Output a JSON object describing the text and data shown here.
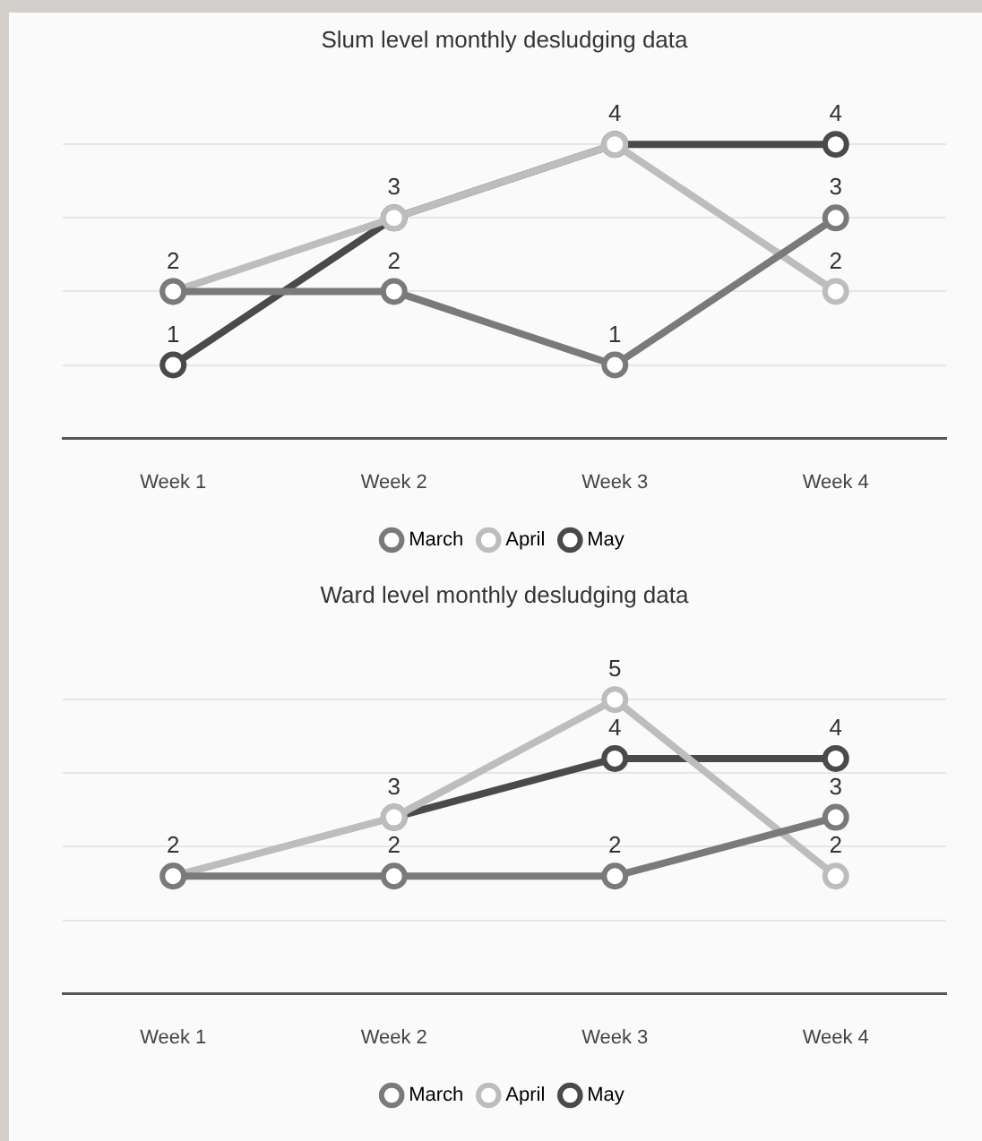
{
  "chart_data": [
    {
      "type": "line",
      "title": "Slum level monthly desludging data",
      "categories": [
        "Week 1",
        "Week 2",
        "Week 3",
        "Week 4"
      ],
      "series": [
        {
          "name": "March",
          "color": "#7a7a7a",
          "values": [
            2,
            2,
            1,
            3
          ],
          "value_labels": [
            null,
            "2",
            "1",
            "3"
          ]
        },
        {
          "name": "April",
          "color": "#bdbdbd",
          "values": [
            2,
            3,
            4,
            2
          ],
          "value_labels": [
            "2",
            "3",
            "4",
            "2"
          ]
        },
        {
          "name": "May",
          "color": "#4a4a4a",
          "values": [
            1,
            3,
            4,
            4
          ],
          "value_labels": [
            "1",
            null,
            null,
            "4"
          ]
        }
      ],
      "ylim": [
        0,
        4
      ],
      "yticks": [
        {
          "value": 1,
          "label": null
        },
        {
          "value": 2,
          "label": null
        },
        {
          "value": 3,
          "label": null
        },
        {
          "value": 4,
          "label": null
        }
      ],
      "tick_labels": "x",
      "grid": "y",
      "legend": "bottom",
      "marker": "circle",
      "line_style": "solid"
    },
    {
      "type": "line",
      "title": "Ward level monthly desludging data",
      "categories": [
        "Week 1",
        "Week 2",
        "Week 3",
        "Week 4"
      ],
      "series": [
        {
          "name": "March",
          "color": "#7a7a7a",
          "values": [
            2,
            2,
            2,
            3
          ],
          "value_labels": [
            "2",
            "2",
            "2",
            "3"
          ]
        },
        {
          "name": "April",
          "color": "#bdbdbd",
          "values": [
            2,
            3,
            5,
            2
          ],
          "value_labels": [
            null,
            null,
            "5",
            "2"
          ]
        },
        {
          "name": "May",
          "color": "#4a4a4a",
          "values": [
            null,
            3,
            4,
            4
          ],
          "value_labels": [
            null,
            "3",
            "4",
            "4"
          ]
        }
      ],
      "ylim": [
        0,
        5
      ],
      "yticks": [
        {
          "value": 1.25,
          "label": null
        },
        {
          "value": 2.5,
          "label": null
        },
        {
          "value": 3.75,
          "label": null
        },
        {
          "value": 5,
          "label": null
        }
      ],
      "tick_labels": "x",
      "grid": "y",
      "legend": "bottom",
      "marker": "circle",
      "line_style": "solid"
    }
  ]
}
